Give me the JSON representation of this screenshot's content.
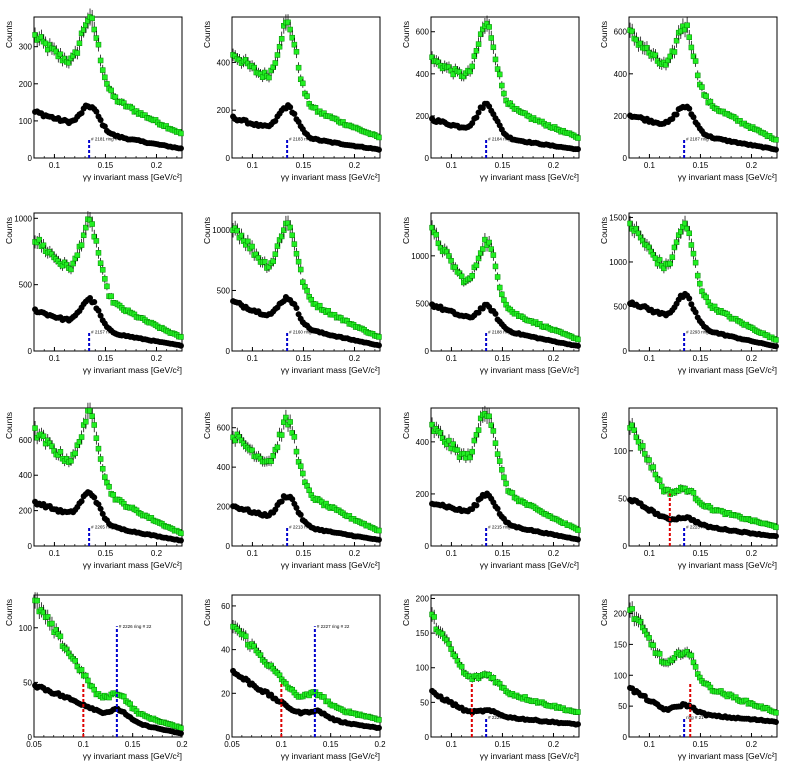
{
  "colors": {
    "green": "#22ee22",
    "black": "#000000",
    "blue": "#0000cc",
    "red": "#dd0000",
    "frame": "#000000"
  },
  "chart_data": [
    {
      "type": "scatter",
      "xlabel": "γγ invariant mass [GeV/c²]",
      "ylabel": "Counts",
      "xlim": [
        0.08,
        0.225
      ],
      "ylim": [
        0,
        380
      ],
      "xticks": [
        "0.1",
        "0.15",
        "0.2"
      ],
      "yticks": [
        "0",
        "100",
        "200",
        "300"
      ],
      "annotation": "# 2181 ring # 1",
      "blue_line_x": 0.134,
      "peak_x": 0.134,
      "peak_width": 0.008,
      "series": [
        {
          "color": "green",
          "start": 330,
          "valley": 255,
          "peak": 375,
          "end": 65
        },
        {
          "color": "black",
          "start": 125,
          "valley": 95,
          "peak": 140,
          "end": 25
        }
      ]
    },
    {
      "type": "scatter",
      "xlabel": "γγ invariant mass [GeV/c²]",
      "ylabel": "Counts",
      "xlim": [
        0.08,
        0.225
      ],
      "ylim": [
        0,
        590
      ],
      "xticks": [
        "0.1",
        "0.15",
        "0.2"
      ],
      "yticks": [
        "0",
        "200",
        "400"
      ],
      "annotation": "# 2183 ring #",
      "blue_line_x": 0.134,
      "peak_x": 0.134,
      "peak_width": 0.008,
      "series": [
        {
          "color": "green",
          "start": 440,
          "valley": 330,
          "peak": 560,
          "end": 85
        },
        {
          "color": "black",
          "start": 170,
          "valley": 125,
          "peak": 215,
          "end": 35
        }
      ]
    },
    {
      "type": "scatter",
      "xlabel": "γγ invariant mass [GeV/c²]",
      "ylabel": "Counts",
      "xlim": [
        0.08,
        0.225
      ],
      "ylim": [
        0,
        670
      ],
      "xticks": [
        "0.1",
        "0.15",
        "0.2"
      ],
      "yticks": [
        "0",
        "200",
        "400",
        "600"
      ],
      "annotation": "# 2184 ring # 1",
      "blue_line_x": 0.134,
      "peak_x": 0.134,
      "peak_width": 0.008,
      "series": [
        {
          "color": "green",
          "start": 470,
          "valley": 380,
          "peak": 630,
          "end": 95
        },
        {
          "color": "black",
          "start": 185,
          "valley": 140,
          "peak": 255,
          "end": 40
        }
      ]
    },
    {
      "type": "scatter",
      "xlabel": "γγ invariant mass [GeV/c²]",
      "ylabel": "Counts",
      "xlim": [
        0.08,
        0.225
      ],
      "ylim": [
        0,
        670
      ],
      "xticks": [
        "0.1",
        "0.15",
        "0.2"
      ],
      "yticks": [
        "0",
        "200",
        "400",
        "600"
      ],
      "annotation": "# 2187 ring",
      "blue_line_x": 0.134,
      "peak_x": 0.134,
      "peak_width": 0.008,
      "series": [
        {
          "color": "green",
          "start": 600,
          "valley": 430,
          "peak": 630,
          "end": 85
        },
        {
          "color": "black",
          "start": 205,
          "valley": 160,
          "peak": 245,
          "end": 40
        }
      ]
    },
    {
      "type": "scatter",
      "xlabel": "γγ invariant mass [GeV/c²]",
      "ylabel": "Counts",
      "xlim": [
        0.08,
        0.225
      ],
      "ylim": [
        0,
        1040
      ],
      "xticks": [
        "0.1",
        "0.15",
        "0.2"
      ],
      "yticks": [
        "0",
        "500",
        "1000"
      ],
      "annotation": "# 2157 ring #",
      "blue_line_x": 0.134,
      "peak_x": 0.134,
      "peak_width": 0.008,
      "series": [
        {
          "color": "green",
          "start": 850,
          "valley": 610,
          "peak": 960,
          "end": 100
        },
        {
          "color": "black",
          "start": 310,
          "valley": 225,
          "peak": 390,
          "end": 40
        }
      ]
    },
    {
      "type": "scatter",
      "xlabel": "γγ invariant mass [GeV/c²]",
      "ylabel": "Counts",
      "xlim": [
        0.08,
        0.225
      ],
      "ylim": [
        0,
        1140
      ],
      "xticks": [
        "0.1",
        "0.15",
        "0.2"
      ],
      "yticks": [
        "0",
        "500",
        "1000"
      ],
      "annotation": "# 2160 ring # 15",
      "blue_line_x": 0.134,
      "peak_x": 0.134,
      "peak_width": 0.008,
      "series": [
        {
          "color": "green",
          "start": 1050,
          "valley": 690,
          "peak": 1050,
          "end": 110
        },
        {
          "color": "black",
          "start": 410,
          "valley": 295,
          "peak": 440,
          "end": 45
        }
      ]
    },
    {
      "type": "scatter",
      "xlabel": "γγ invariant mass [GeV/c²]",
      "ylabel": "Counts",
      "xlim": [
        0.08,
        0.225
      ],
      "ylim": [
        0,
        1450
      ],
      "xticks": [
        "0.1",
        "0.15",
        "0.2"
      ],
      "yticks": [
        "0",
        "500",
        "1000"
      ],
      "annotation": "# 2188 ring # 16",
      "blue_line_x": 0.134,
      "peak_x": 0.134,
      "peak_width": 0.008,
      "series": [
        {
          "color": "green",
          "start": 1270,
          "valley": 700,
          "peak": 1150,
          "end": 120
        },
        {
          "color": "black",
          "start": 490,
          "valley": 350,
          "peak": 470,
          "end": 50
        }
      ]
    },
    {
      "type": "scatter",
      "xlabel": "γγ invariant mass [GeV/c²]",
      "ylabel": "Counts",
      "xlim": [
        0.08,
        0.225
      ],
      "ylim": [
        0,
        1550
      ],
      "xticks": [
        "0.1",
        "0.15",
        "0.2"
      ],
      "yticks": [
        "0",
        "500",
        "1000",
        "1500"
      ],
      "annotation": "# 2293 ring # 15",
      "blue_line_x": 0.134,
      "peak_x": 0.134,
      "peak_width": 0.008,
      "series": [
        {
          "color": "green",
          "start": 1450,
          "valley": 920,
          "peak": 1400,
          "end": 120
        },
        {
          "color": "black",
          "start": 560,
          "valley": 400,
          "peak": 620,
          "end": 50
        }
      ]
    },
    {
      "type": "scatter",
      "xlabel": "γγ invariant mass [GeV/c²]",
      "ylabel": "Counts",
      "xlim": [
        0.08,
        0.225
      ],
      "ylim": [
        0,
        780
      ],
      "xticks": [
        "0.1",
        "0.15",
        "0.2"
      ],
      "yticks": [
        "0",
        "200",
        "400",
        "600"
      ],
      "annotation": "# 2265 ring # 1",
      "blue_line_x": 0.134,
      "peak_x": 0.134,
      "peak_width": 0.008,
      "series": [
        {
          "color": "green",
          "start": 650,
          "valley": 470,
          "peak": 740,
          "end": 70
        },
        {
          "color": "black",
          "start": 250,
          "valley": 180,
          "peak": 300,
          "end": 30
        }
      ]
    },
    {
      "type": "scatter",
      "xlabel": "γγ invariant mass [GeV/c²]",
      "ylabel": "Counts",
      "xlim": [
        0.08,
        0.225
      ],
      "ylim": [
        0,
        700
      ],
      "xticks": [
        "0.1",
        "0.15",
        "0.2"
      ],
      "yticks": [
        "0",
        "200",
        "400",
        "600"
      ],
      "annotation": "# 2213 ring",
      "blue_line_x": 0.134,
      "peak_x": 0.134,
      "peak_width": 0.008,
      "series": [
        {
          "color": "green",
          "start": 570,
          "valley": 420,
          "peak": 630,
          "end": 75
        },
        {
          "color": "black",
          "start": 205,
          "valley": 150,
          "peak": 255,
          "end": 30
        }
      ]
    },
    {
      "type": "scatter",
      "xlabel": "γγ invariant mass [GeV/c²]",
      "ylabel": "Counts",
      "xlim": [
        0.08,
        0.225
      ],
      "ylim": [
        0,
        530
      ],
      "xticks": [
        "0.1",
        "0.15",
        "0.2"
      ],
      "yticks": [
        "0",
        "200",
        "400"
      ],
      "annotation": "# 2215 ring",
      "blue_line_x": 0.134,
      "peak_x": 0.134,
      "peak_width": 0.008,
      "series": [
        {
          "color": "green",
          "start": 460,
          "valley": 330,
          "peak": 520,
          "end": 60
        },
        {
          "color": "black",
          "start": 170,
          "valley": 130,
          "peak": 200,
          "end": 25
        }
      ]
    },
    {
      "type": "scatter",
      "xlabel": "γγ invariant mass [GeV/c²]",
      "ylabel": "Counts",
      "xlim": [
        0.08,
        0.225
      ],
      "ylim": [
        0,
        145
      ],
      "xticks": [
        "0.1",
        "0.15",
        "0.2"
      ],
      "yticks": [
        "0",
        "50",
        "100"
      ],
      "annotation": "# 2223 ring #",
      "blue_line_x": 0.134,
      "red_line_x": 0.12,
      "peak_x": 0.134,
      "peak_width": 0.008,
      "series": [
        {
          "color": "green",
          "start": 130,
          "valley": 60,
          "peak": 60,
          "end": 20
        },
        {
          "color": "black",
          "start": 50,
          "valley": 30,
          "peak": 30,
          "end": 10
        }
      ]
    },
    {
      "type": "scatter",
      "xlabel": "γγ invariant mass [GeV/c²]",
      "ylabel": "Counts",
      "xlim": [
        0.05,
        0.2
      ],
      "ylim": [
        0,
        130
      ],
      "xticks": [
        "0.05",
        "0.1",
        "0.15",
        "0.2"
      ],
      "yticks": [
        "0",
        "50",
        "100"
      ],
      "annotation": "# 2226 ring # 22",
      "blue_line_x": 0.134,
      "red_line_x": 0.1,
      "peak_x": 0.134,
      "peak_width": 0.008,
      "series": [
        {
          "color": "green",
          "start": 125,
          "valley": 40,
          "peak": 40,
          "end": 8
        },
        {
          "color": "black",
          "start": 48,
          "valley": 25,
          "peak": 25,
          "end": 3
        }
      ]
    },
    {
      "type": "scatter",
      "xlabel": "γγ invariant mass [GeV/c²]",
      "ylabel": "Counts",
      "xlim": [
        0.05,
        0.2
      ],
      "ylim": [
        0,
        65
      ],
      "xticks": [
        "0.05",
        "0.1",
        "0.15",
        "0.2"
      ],
      "yticks": [
        "0",
        "20",
        "40",
        "60"
      ],
      "annotation": "# 2227 ring # 22",
      "blue_line_x": 0.134,
      "red_line_x": 0.1,
      "peak_x": 0.134,
      "peak_width": 0.008,
      "series": [
        {
          "color": "green",
          "start": 52,
          "valley": 20,
          "peak": 20,
          "end": 8
        },
        {
          "color": "black",
          "start": 30,
          "valley": 12,
          "peak": 12,
          "end": 4
        }
      ]
    },
    {
      "type": "scatter",
      "xlabel": "γγ invariant mass [GeV/c²]",
      "ylabel": "Counts",
      "xlim": [
        0.08,
        0.225
      ],
      "ylim": [
        0,
        205
      ],
      "xticks": [
        "0.1",
        "0.15",
        "0.2"
      ],
      "yticks": [
        "0",
        "50",
        "100",
        "150",
        "200"
      ],
      "annotation": "# 2229",
      "blue_line_x": 0.134,
      "red_line_x": 0.12,
      "peak_x": 0.134,
      "peak_width": 0.008,
      "series": [
        {
          "color": "green",
          "start": 175,
          "valley": 90,
          "peak": 90,
          "end": 35
        },
        {
          "color": "black",
          "start": 65,
          "valley": 38,
          "peak": 38,
          "end": 18
        }
      ]
    },
    {
      "type": "scatter",
      "xlabel": "γγ invariant mass [GeV/c²]",
      "ylabel": "Counts",
      "xlim": [
        0.08,
        0.225
      ],
      "ylim": [
        0,
        230
      ],
      "xticks": [
        "0.1",
        "0.15",
        "0.2"
      ],
      "yticks": [
        "0",
        "50",
        "100",
        "150",
        "200"
      ],
      "annotation": "ring # 21",
      "blue_line_x": 0.134,
      "red_line_x": 0.14,
      "peak_x": 0.134,
      "peak_width": 0.008,
      "series": [
        {
          "color": "green",
          "start": 210,
          "valley": 120,
          "peak": 140,
          "end": 40
        },
        {
          "color": "black",
          "start": 80,
          "valley": 45,
          "peak": 52,
          "end": 25
        }
      ]
    }
  ]
}
